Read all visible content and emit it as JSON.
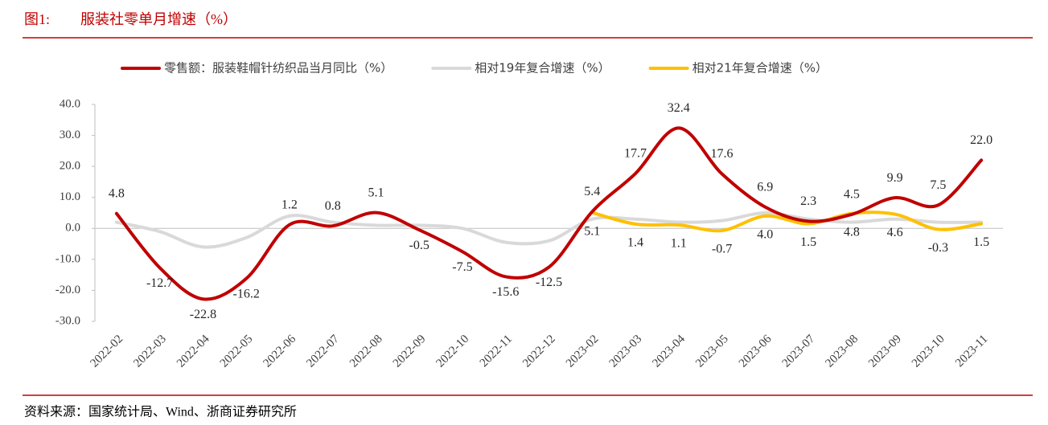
{
  "header": {
    "figure_label": "图1:",
    "title": "服装社零单月增速（%）"
  },
  "chart_data": {
    "type": "line",
    "categories": [
      "2022-02",
      "2022-03",
      "2022-04",
      "2022-05",
      "2022-06",
      "2022-07",
      "2022-08",
      "2022-09",
      "2022-10",
      "2022-11",
      "2022-12",
      "2023-02",
      "2023-03",
      "2023-04",
      "2023-05",
      "2023-06",
      "2023-07",
      "2023-08",
      "2023-09",
      "2023-10",
      "2023-11"
    ],
    "series": [
      {
        "name": "零售额：服装鞋帽针纺织品当月同比（%）",
        "color": "#c00000",
        "values": [
          4.8,
          -12.7,
          -22.8,
          -16.2,
          1.2,
          0.8,
          5.1,
          -0.5,
          -7.5,
          -15.6,
          -12.5,
          5.4,
          17.7,
          32.4,
          17.6,
          6.9,
          2.3,
          4.5,
          9.9,
          7.5,
          22.0
        ],
        "value_labels": [
          "4.8",
          "-12.7",
          "-22.8",
          "-16.2",
          "1.2",
          "0.8",
          "5.1",
          "-0.5",
          "-7.5",
          "-15.6",
          "-12.5",
          "5.4",
          "17.7",
          "32.4",
          "17.6",
          "6.9",
          "2.3",
          "4.5",
          "9.9",
          "7.5",
          "22.0"
        ]
      },
      {
        "name": "相对19年复合增速（%）",
        "color": "#d9d9d9",
        "values": [
          2,
          -1,
          -6,
          -3,
          4,
          2,
          1,
          1,
          0,
          -4.5,
          -4,
          3,
          3,
          2,
          2.5,
          5,
          3,
          2,
          3,
          2,
          2
        ]
      },
      {
        "name": "相对21年复合增速（%）",
        "color": "#ffc000",
        "values": [
          null,
          null,
          null,
          null,
          null,
          null,
          null,
          null,
          null,
          null,
          null,
          5.1,
          1.4,
          1.1,
          -0.7,
          4.0,
          1.5,
          4.8,
          4.6,
          -0.3,
          1.5
        ],
        "value_labels": [
          null,
          null,
          null,
          null,
          null,
          null,
          null,
          null,
          null,
          null,
          null,
          "5.1",
          "1.4",
          "1.1",
          "-0.7",
          "4.0",
          "1.5",
          "4.8",
          "4.6",
          "-0.3",
          "1.5"
        ]
      }
    ],
    "ylim": [
      -30,
      40
    ],
    "yticks": [
      {
        "value": -30,
        "label": "-30.0"
      },
      {
        "value": -20,
        "label": "-20.0"
      },
      {
        "value": -10,
        "label": "-10.0"
      },
      {
        "value": 0,
        "label": "0.0"
      },
      {
        "value": 10,
        "label": "10.0"
      },
      {
        "value": 20,
        "label": "20.0"
      },
      {
        "value": 30,
        "label": "30.0"
      },
      {
        "value": 40,
        "label": "40.0"
      }
    ],
    "legend": "top"
  },
  "footer": {
    "source": "资料来源：国家统计局、Wind、浙商证券研究所"
  }
}
